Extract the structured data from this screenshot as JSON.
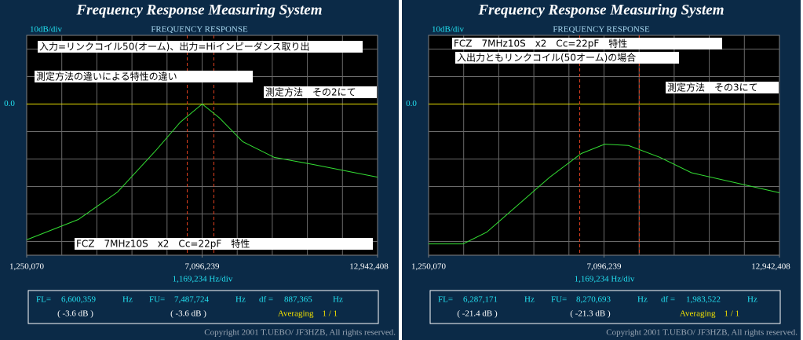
{
  "chart_data": [
    {
      "type": "line",
      "title": "Frequency Response Measuring System",
      "subtitle": "FREQUENCY RESPONSE",
      "y_div_label": "10dB/div",
      "x_div_label": "1,169,234  Hz/div",
      "xlim": [
        1250070,
        12942408
      ],
      "xticks": [
        {
          "value": 1250070,
          "label": "1,250,070"
        },
        {
          "value": 7096239,
          "label": "7,096,239"
        },
        {
          "value": 12942408,
          "label": "12,942,408"
        }
      ],
      "ylim": [
        -55,
        25
      ],
      "yticks": [
        {
          "value": 0,
          "label": "0.0"
        }
      ],
      "color": "#33dd33",
      "x": [
        1250070,
        2970000,
        4280000,
        5580000,
        6370000,
        7100000,
        7670000,
        8450000,
        9500000,
        10800000,
        12942408
      ],
      "values": [
        -49.4,
        -42,
        -32,
        -16.6,
        -6.6,
        0,
        -5,
        -13.7,
        -19.4,
        -22,
        -26.6
      ],
      "annotations": [
        "入力=リンクコイル50(オーム)、出力=Hiインピーダンス取り出",
        "測定方法の違いによる特性の違い",
        "測定方法　その2にて",
        "FCZ　7MHz10S　x2　Cc=22pF　特性"
      ],
      "readout": [
        {
          "name": "FL=",
          "value": 6600359,
          "label": "6,600,359",
          "unit": "Hz",
          "db": "( -3.6 dB )"
        },
        {
          "name": "FU=",
          "value": 7487724,
          "label": "7,487,724",
          "unit": "Hz",
          "db": "( -3.6 dB )"
        },
        {
          "name": "df =",
          "label": "887,365",
          "unit": "Hz",
          "averaging": "Averaging　1 / 1"
        }
      ],
      "copyright": "Copyright 2001 T.UEBO/ JF3HZB, All rights reserved."
    },
    {
      "type": "line",
      "title": "Frequency Response Measuring System",
      "subtitle": "FREQUENCY RESPONSE",
      "y_div_label": "10dB/div",
      "x_div_label": "1,169,234  Hz/div",
      "xlim": [
        1250070,
        12942408
      ],
      "xticks": [
        {
          "value": 1250070,
          "label": "1,250,070"
        },
        {
          "value": 7096239,
          "label": "7,096,239"
        },
        {
          "value": 12942408,
          "label": "12,942,408"
        }
      ],
      "ylim": [
        -55,
        25
      ],
      "yticks": [
        {
          "value": 0,
          "label": "0.0"
        }
      ],
      "color": "#33dd33",
      "x": [
        1250070,
        2400000,
        3190000,
        4240000,
        5290000,
        6340000,
        7120000,
        7910000,
        8960000,
        10010000,
        11580000,
        12942408
      ],
      "values": [
        -50.9,
        -50.9,
        -46.6,
        -36.6,
        -26.6,
        -18,
        -14.6,
        -15.1,
        -19.4,
        -25,
        -28.9,
        -32.3
      ],
      "annotations": [
        "FCZ　7MHz10S　x2　Cc=22pF　特性",
        "入出力ともリンクコイル(50オーム)の場合",
        "測定方法　その3にて"
      ],
      "readout": [
        {
          "name": "FL=",
          "value": 6287171,
          "label": "6,287,171",
          "unit": "Hz",
          "db": "( -21.4 dB )"
        },
        {
          "name": "FU=",
          "value": 8270693,
          "label": "8,270,693",
          "unit": "Hz",
          "db": "( -21.3 dB )"
        },
        {
          "name": "df =",
          "label": "1,983,522",
          "unit": "Hz",
          "averaging": "Averaging　1 / 1"
        }
      ],
      "copyright": "Copyright 2001 T.UEBO/ JF3HZB, All rights reserved."
    }
  ]
}
